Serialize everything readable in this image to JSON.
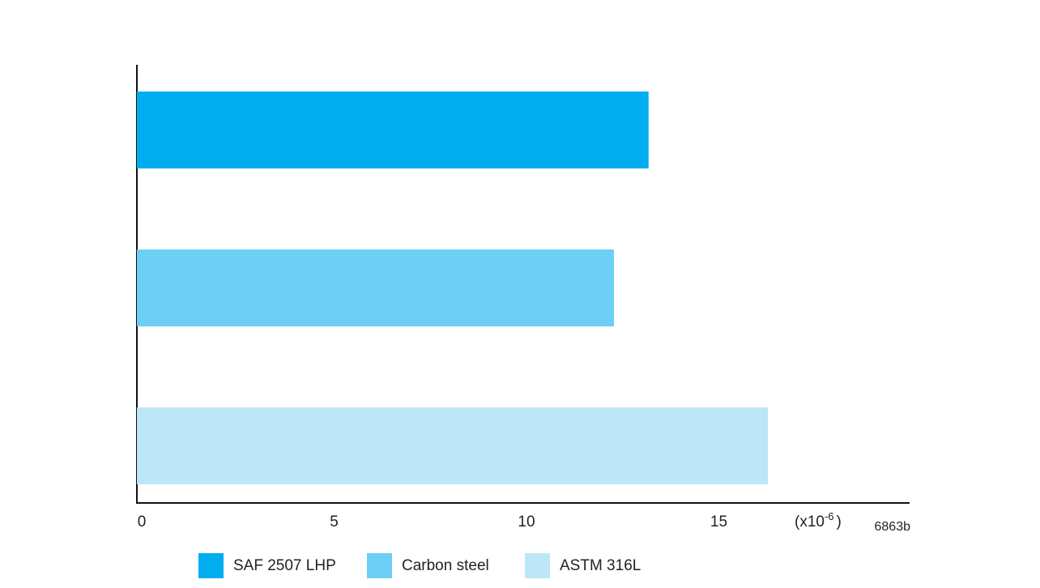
{
  "chart_data": {
    "type": "bar",
    "orientation": "horizontal",
    "series": [
      {
        "name": "SAF 2507 LHP",
        "color": "#00aeef",
        "values": [
          13.3
        ]
      },
      {
        "name": "Carbon steel",
        "color": "#6dcff6",
        "values": [
          12.4
        ]
      },
      {
        "name": "ASTM 316L",
        "color": "#bde6f8",
        "values": [
          16.4
        ]
      }
    ],
    "xlim": [
      0,
      20
    ],
    "xticks": [
      0,
      5,
      10,
      15
    ],
    "x_unit": {
      "prefix": "(x10",
      "exponent": "-6",
      "suffix": ")"
    },
    "note": "6863b",
    "legend": "bottom",
    "grid": false
  }
}
